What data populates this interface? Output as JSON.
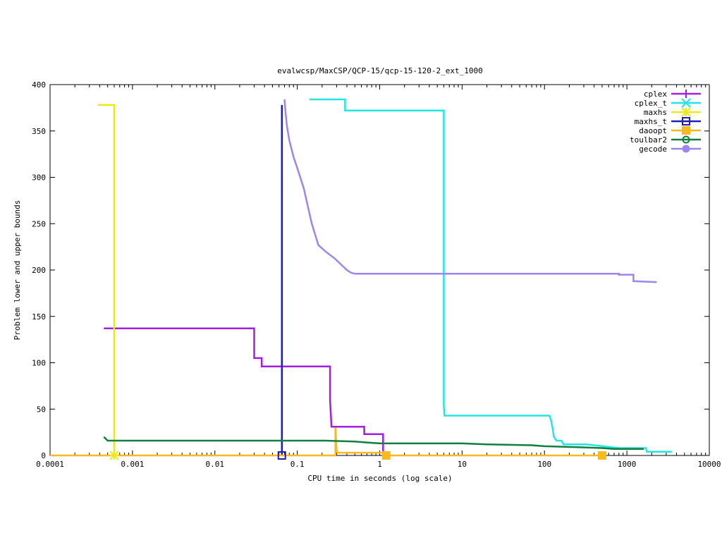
{
  "chart_data": {
    "type": "line",
    "title": "evalwcsp/MaxCSP/QCP-15/qcp-15-120-2_ext_1000",
    "xlabel": "CPU time in seconds (log scale)",
    "ylabel": "Problem lower and upper bounds",
    "x_scale": "log",
    "xlim": [
      0.0001,
      10000
    ],
    "ylim": [
      0,
      400
    ],
    "x_ticks": [
      {
        "value": 0.0001,
        "label": "0.0001"
      },
      {
        "value": 0.001,
        "label": "0.001"
      },
      {
        "value": 0.01,
        "label": "0.01"
      },
      {
        "value": 0.1,
        "label": "0.1"
      },
      {
        "value": 1,
        "label": "1"
      },
      {
        "value": 10,
        "label": "10"
      },
      {
        "value": 100,
        "label": "100"
      },
      {
        "value": 1000,
        "label": "1000"
      },
      {
        "value": 10000,
        "label": "10000"
      }
    ],
    "y_ticks": [
      {
        "value": 0,
        "label": "0"
      },
      {
        "value": 50,
        "label": "50"
      },
      {
        "value": 100,
        "label": "100"
      },
      {
        "value": 150,
        "label": "150"
      },
      {
        "value": 200,
        "label": "200"
      },
      {
        "value": 250,
        "label": "250"
      },
      {
        "value": 300,
        "label": "300"
      },
      {
        "value": 350,
        "label": "350"
      },
      {
        "value": 400,
        "label": "400"
      }
    ],
    "grid": false,
    "legend_position": "top-right",
    "series": [
      {
        "name": "cplex",
        "color": "#a31ee0",
        "marker": "plus",
        "points": [
          [
            0.00045,
            137
          ],
          [
            0.03,
            137
          ],
          [
            0.03,
            105
          ],
          [
            0.037,
            105
          ],
          [
            0.037,
            96
          ],
          [
            0.25,
            96
          ],
          [
            0.25,
            60
          ],
          [
            0.26,
            31
          ],
          [
            0.65,
            31
          ],
          [
            0.65,
            23
          ],
          [
            1.1,
            23
          ],
          [
            1.1,
            0
          ]
        ]
      },
      {
        "name": "cplex_t",
        "color": "#22e6e6",
        "marker": "cross",
        "points": [
          [
            0.14,
            384
          ],
          [
            0.38,
            384
          ],
          [
            0.38,
            372
          ],
          [
            6.0,
            372
          ],
          [
            6.0,
            55
          ],
          [
            6.1,
            43
          ],
          [
            115,
            43
          ],
          [
            120,
            38
          ],
          [
            125,
            30
          ],
          [
            130,
            20
          ],
          [
            140,
            16
          ],
          [
            160,
            16
          ],
          [
            170,
            12
          ],
          [
            320,
            12
          ],
          [
            800,
            8
          ],
          [
            1700,
            8
          ],
          [
            1750,
            4
          ],
          [
            3500,
            4
          ]
        ]
      },
      {
        "name": "maxhs",
        "color": "#eaea1a",
        "marker": "star",
        "points": [
          [
            0.00038,
            378
          ],
          [
            0.0006,
            378
          ],
          [
            0.0006,
            0
          ]
        ]
      },
      {
        "name": "maxhs_t",
        "color": "#2020b0",
        "marker": "box",
        "points": [
          [
            0.065,
            378
          ],
          [
            0.065,
            0
          ]
        ]
      },
      {
        "name": "daoopt",
        "color": "#f8b820",
        "marker": "filled-box",
        "points": [
          [
            0.0001,
            0
          ],
          [
            0.29,
            0
          ],
          [
            0.29,
            30
          ],
          [
            0.3,
            5
          ],
          [
            0.31,
            3
          ],
          [
            1.2,
            3
          ],
          [
            1.2,
            0
          ],
          [
            500,
            0
          ]
        ]
      },
      {
        "name": "toulbar2",
        "color": "#108040",
        "marker": "circle",
        "points": [
          [
            0.00045,
            20
          ],
          [
            0.0005,
            16
          ],
          [
            0.22,
            16
          ],
          [
            0.5,
            15
          ],
          [
            0.7,
            14
          ],
          [
            1.0,
            13
          ],
          [
            10,
            13
          ],
          [
            20,
            12
          ],
          [
            70,
            11
          ],
          [
            100,
            10
          ],
          [
            250,
            9
          ],
          [
            500,
            8
          ],
          [
            700,
            7
          ],
          [
            1600,
            7
          ]
        ]
      },
      {
        "name": "gecode",
        "color": "#9d84ee",
        "marker": "filled-circle",
        "points": [
          [
            0.07,
            384
          ],
          [
            0.072,
            370
          ],
          [
            0.075,
            355
          ],
          [
            0.08,
            340
          ],
          [
            0.09,
            322
          ],
          [
            0.1,
            310
          ],
          [
            0.12,
            288
          ],
          [
            0.15,
            250
          ],
          [
            0.18,
            227
          ],
          [
            0.22,
            220
          ],
          [
            0.28,
            213
          ],
          [
            0.34,
            206
          ],
          [
            0.4,
            200
          ],
          [
            0.45,
            197
          ],
          [
            0.5,
            196
          ],
          [
            800,
            196
          ],
          [
            800,
            195
          ],
          [
            1200,
            195
          ],
          [
            1200,
            188
          ],
          [
            2300,
            187
          ]
        ]
      }
    ]
  }
}
